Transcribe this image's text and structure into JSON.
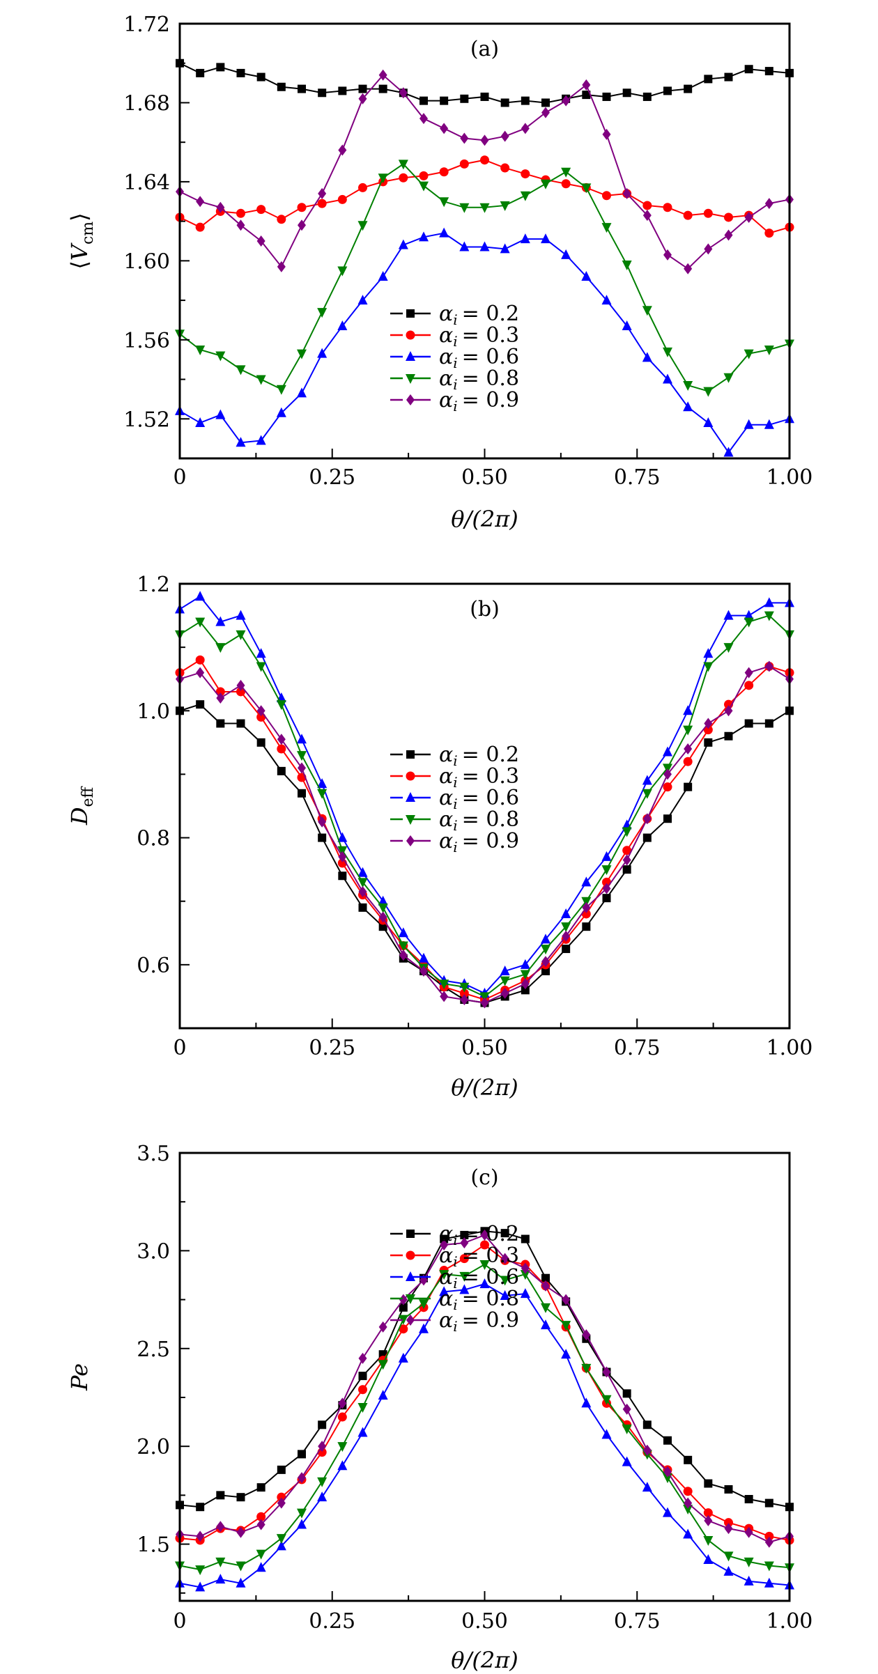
{
  "chart_data": [
    {
      "type": "line",
      "title": "(a)",
      "xlabel": "θ/(2π)",
      "ylabel": {
        "open": "⟨",
        "main": "V",
        "sub": "cm",
        "close": "⟩"
      },
      "xlim": [
        0,
        1
      ],
      "ylim": [
        1.5,
        1.72
      ],
      "xticks": [
        "0",
        "0.25",
        "0.50",
        "0.75",
        "1.00"
      ],
      "yticks": [
        "1.52",
        "1.56",
        "1.60",
        "1.64",
        "1.68",
        "1.72"
      ],
      "legend_position": "lower-center",
      "series": [
        {
          "name": "α_i = 0.2",
          "label_symbol": "α",
          "label_sub": "i",
          "label_value": "= 0.2",
          "color": "#000000",
          "marker": "square",
          "values": [
            1.7,
            1.695,
            1.698,
            1.695,
            1.693,
            1.688,
            1.687,
            1.685,
            1.686,
            1.687,
            1.687,
            1.685,
            1.681,
            1.681,
            1.682,
            1.683,
            1.68,
            1.681,
            1.68,
            1.682,
            1.684,
            1.683,
            1.685,
            1.683,
            1.686,
            1.687,
            1.692,
            1.693,
            1.697,
            1.696,
            1.695
          ]
        },
        {
          "name": "α_i = 0.3",
          "label_symbol": "α",
          "label_sub": "i",
          "label_value": "= 0.3",
          "color": "#ff0000",
          "marker": "circle",
          "values": [
            1.622,
            1.617,
            1.625,
            1.624,
            1.626,
            1.621,
            1.627,
            1.629,
            1.631,
            1.637,
            1.64,
            1.642,
            1.643,
            1.645,
            1.649,
            1.651,
            1.647,
            1.644,
            1.641,
            1.639,
            1.637,
            1.633,
            1.634,
            1.628,
            1.627,
            1.623,
            1.624,
            1.622,
            1.623,
            1.614,
            1.617
          ]
        },
        {
          "name": "α_i = 0.6",
          "label_symbol": "α",
          "label_sub": "i",
          "label_value": "= 0.6",
          "color": "#0000ff",
          "marker": "triangle-up",
          "values": [
            1.524,
            1.518,
            1.522,
            1.508,
            1.509,
            1.523,
            1.533,
            1.553,
            1.567,
            1.58,
            1.592,
            1.608,
            1.612,
            1.614,
            1.607,
            1.607,
            1.606,
            1.611,
            1.611,
            1.603,
            1.592,
            1.58,
            1.567,
            1.551,
            1.54,
            1.526,
            1.518,
            1.503,
            1.517,
            1.517,
            1.52
          ]
        },
        {
          "name": "α_i = 0.8",
          "label_symbol": "α",
          "label_sub": "i",
          "label_value": "= 0.8",
          "color": "#008000",
          "marker": "triangle-down",
          "values": [
            1.563,
            1.555,
            1.552,
            1.545,
            1.54,
            1.535,
            1.553,
            1.574,
            1.595,
            1.618,
            1.642,
            1.649,
            1.638,
            1.63,
            1.627,
            1.627,
            1.628,
            1.633,
            1.639,
            1.645,
            1.637,
            1.617,
            1.598,
            1.575,
            1.554,
            1.537,
            1.534,
            1.541,
            1.553,
            1.555,
            1.558
          ]
        },
        {
          "name": "α_i = 0.9",
          "label_symbol": "α",
          "label_sub": "i",
          "label_value": "= 0.9",
          "color": "#800080",
          "marker": "diamond",
          "values": [
            1.635,
            1.63,
            1.627,
            1.618,
            1.61,
            1.597,
            1.618,
            1.634,
            1.656,
            1.682,
            1.694,
            1.685,
            1.672,
            1.667,
            1.662,
            1.661,
            1.663,
            1.667,
            1.675,
            1.681,
            1.689,
            1.664,
            1.634,
            1.623,
            1.603,
            1.596,
            1.606,
            1.613,
            1.622,
            1.629,
            1.631
          ]
        }
      ]
    },
    {
      "type": "line",
      "title": "(b)",
      "xlabel": "θ/(2π)",
      "ylabel": {
        "open": "",
        "main": "D",
        "sub": "eff",
        "close": ""
      },
      "xlim": [
        0,
        1
      ],
      "ylim": [
        0.5,
        1.2
      ],
      "xticks": [
        "0",
        "0.25",
        "0.50",
        "0.75",
        "1.00"
      ],
      "yticks": [
        "0.6",
        "0.8",
        "1.0",
        "1.2"
      ],
      "legend_position": "center",
      "series": [
        {
          "name": "α_i = 0.2",
          "label_symbol": "α",
          "label_sub": "i",
          "label_value": "= 0.2",
          "color": "#000000",
          "marker": "square",
          "values": [
            1.0,
            1.01,
            0.98,
            0.98,
            0.95,
            0.905,
            0.87,
            0.8,
            0.74,
            0.69,
            0.66,
            0.61,
            0.59,
            0.565,
            0.545,
            0.54,
            0.55,
            0.56,
            0.59,
            0.625,
            0.66,
            0.705,
            0.75,
            0.8,
            0.83,
            0.88,
            0.95,
            0.96,
            0.98,
            0.98,
            1.0
          ]
        },
        {
          "name": "α_i = 0.3",
          "label_symbol": "α",
          "label_sub": "i",
          "label_value": "= 0.3",
          "color": "#ff0000",
          "marker": "circle",
          "values": [
            1.06,
            1.08,
            1.03,
            1.03,
            0.99,
            0.94,
            0.895,
            0.83,
            0.76,
            0.71,
            0.67,
            0.63,
            0.6,
            0.565,
            0.555,
            0.545,
            0.56,
            0.575,
            0.6,
            0.64,
            0.68,
            0.73,
            0.78,
            0.83,
            0.88,
            0.92,
            0.97,
            1.01,
            1.04,
            1.07,
            1.06
          ]
        },
        {
          "name": "α_i = 0.6",
          "label_symbol": "α",
          "label_sub": "i",
          "label_value": "= 0.6",
          "color": "#0000ff",
          "marker": "triangle-up",
          "values": [
            1.16,
            1.18,
            1.14,
            1.15,
            1.09,
            1.02,
            0.955,
            0.885,
            0.8,
            0.745,
            0.7,
            0.65,
            0.61,
            0.575,
            0.57,
            0.555,
            0.59,
            0.6,
            0.64,
            0.68,
            0.73,
            0.77,
            0.82,
            0.89,
            0.935,
            1.0,
            1.09,
            1.15,
            1.15,
            1.17,
            1.17
          ]
        },
        {
          "name": "α_i = 0.8",
          "label_symbol": "α",
          "label_sub": "i",
          "label_value": "= 0.8",
          "color": "#008000",
          "marker": "triangle-down",
          "values": [
            1.12,
            1.14,
            1.1,
            1.12,
            1.07,
            1.01,
            0.93,
            0.87,
            0.78,
            0.73,
            0.69,
            0.63,
            0.595,
            0.57,
            0.565,
            0.55,
            0.575,
            0.585,
            0.625,
            0.66,
            0.7,
            0.75,
            0.81,
            0.87,
            0.91,
            0.97,
            1.07,
            1.1,
            1.14,
            1.15,
            1.12
          ]
        },
        {
          "name": "α_i = 0.9",
          "label_symbol": "α",
          "label_sub": "i",
          "label_value": "= 0.9",
          "color": "#800080",
          "marker": "diamond",
          "values": [
            1.05,
            1.06,
            1.02,
            1.04,
            1.0,
            0.955,
            0.91,
            0.825,
            0.77,
            0.715,
            0.675,
            0.615,
            0.59,
            0.55,
            0.545,
            0.54,
            0.555,
            0.57,
            0.605,
            0.645,
            0.69,
            0.72,
            0.765,
            0.83,
            0.9,
            0.94,
            0.98,
            1.0,
            1.06,
            1.07,
            1.05
          ]
        }
      ]
    },
    {
      "type": "line",
      "title": "(c)",
      "xlabel": "θ/(2π)",
      "ylabel": {
        "open": "",
        "main": "Pe",
        "sub": "",
        "close": ""
      },
      "xlim": [
        0,
        1
      ],
      "ylim": [
        1.21,
        3.5
      ],
      "xticks": [
        "0",
        "0.25",
        "0.50",
        "0.75",
        "1.00"
      ],
      "yticks": [
        "1.5",
        "2.0",
        "2.5",
        "3.0",
        "3.5"
      ],
      "legend_position": "lower-center",
      "series": [
        {
          "name": "α_i = 0.2",
          "label_symbol": "α",
          "label_sub": "i",
          "label_value": "= 0.2",
          "color": "#000000",
          "marker": "square",
          "values": [
            1.7,
            1.69,
            1.75,
            1.74,
            1.79,
            1.88,
            1.96,
            2.11,
            2.21,
            2.36,
            2.47,
            2.71,
            2.86,
            3.06,
            3.08,
            3.1,
            3.09,
            3.06,
            2.86,
            2.74,
            2.55,
            2.38,
            2.27,
            2.11,
            2.03,
            1.93,
            1.81,
            1.78,
            1.73,
            1.71,
            1.69
          ]
        },
        {
          "name": "α_i = 0.3",
          "label_symbol": "α",
          "label_sub": "i",
          "label_value": "= 0.3",
          "color": "#ff0000",
          "marker": "circle",
          "values": [
            1.53,
            1.52,
            1.58,
            1.57,
            1.64,
            1.74,
            1.83,
            1.97,
            2.15,
            2.29,
            2.44,
            2.6,
            2.71,
            2.9,
            2.96,
            3.03,
            2.95,
            2.93,
            2.82,
            2.61,
            2.4,
            2.22,
            2.11,
            1.97,
            1.88,
            1.77,
            1.66,
            1.61,
            1.58,
            1.54,
            1.52
          ]
        },
        {
          "name": "α_i = 0.6",
          "label_symbol": "α",
          "label_sub": "i",
          "label_value": "= 0.6",
          "color": "#0000ff",
          "marker": "triangle-up",
          "values": [
            1.3,
            1.28,
            1.32,
            1.3,
            1.38,
            1.49,
            1.6,
            1.74,
            1.9,
            2.07,
            2.26,
            2.45,
            2.6,
            2.79,
            2.8,
            2.83,
            2.77,
            2.78,
            2.62,
            2.47,
            2.22,
            2.06,
            1.92,
            1.79,
            1.66,
            1.55,
            1.42,
            1.36,
            1.31,
            1.3,
            1.29
          ]
        },
        {
          "name": "α_i = 0.8",
          "label_symbol": "α",
          "label_sub": "i",
          "label_value": "= 0.8",
          "color": "#008000",
          "marker": "triangle-down",
          "values": [
            1.39,
            1.37,
            1.41,
            1.39,
            1.45,
            1.53,
            1.66,
            1.82,
            2.0,
            2.2,
            2.42,
            2.65,
            2.73,
            2.88,
            2.87,
            2.93,
            2.85,
            2.88,
            2.71,
            2.62,
            2.4,
            2.24,
            2.09,
            1.96,
            1.84,
            1.68,
            1.52,
            1.44,
            1.41,
            1.39,
            1.38
          ]
        },
        {
          "name": "α_i = 0.9",
          "label_symbol": "α",
          "label_sub": "i",
          "label_value": "= 0.9",
          "color": "#800080",
          "marker": "diamond",
          "values": [
            1.55,
            1.54,
            1.59,
            1.56,
            1.6,
            1.71,
            1.84,
            2.0,
            2.22,
            2.45,
            2.61,
            2.75,
            2.85,
            3.03,
            3.04,
            3.08,
            2.96,
            2.91,
            2.82,
            2.75,
            2.57,
            2.38,
            2.19,
            1.98,
            1.87,
            1.71,
            1.62,
            1.58,
            1.56,
            1.51,
            1.54
          ]
        }
      ]
    }
  ]
}
